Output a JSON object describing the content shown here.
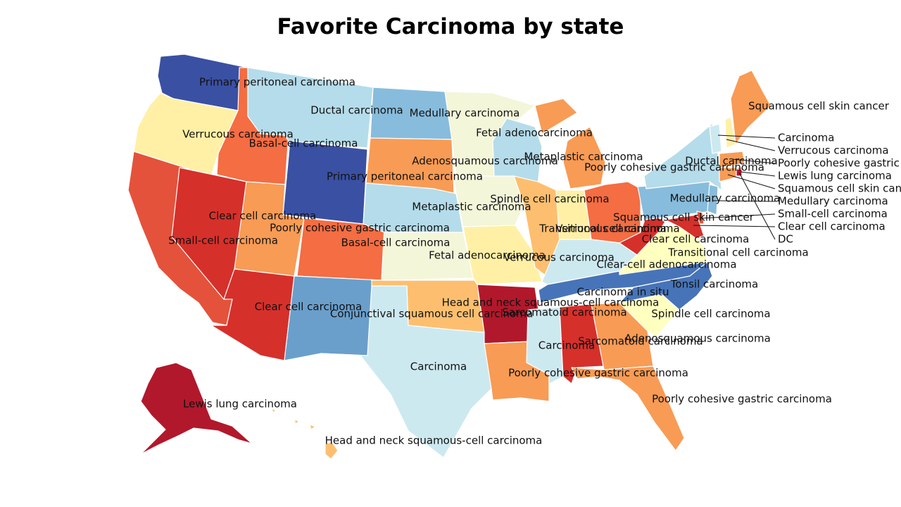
{
  "title": "Favorite Carcinoma by state",
  "palette": {
    "c1": "#a50026",
    "c2": "#d73027",
    "c3": "#f46d43",
    "c4": "#fdae61",
    "c5": "#fee090",
    "c6": "#ffffbf",
    "c7": "#e0f3f8",
    "c8": "#abd9e9",
    "c9": "#74add1",
    "c10": "#4575b4",
    "c11": "#313695",
    "c_dark_red": "#b2182b",
    "c_red": "#d6302b",
    "c_orange_red": "#e4523b",
    "c_orange": "#f89b55",
    "c_light_orange": "#fdbf6f",
    "c_yellow": "#fff0a6",
    "c_pale_yellow": "#f3f6d8",
    "c_pale_blue": "#cde9f0",
    "c_light_blue": "#b5dcea",
    "c_mid_blue": "#88bcdc",
    "c_steel_blue": "#6a9fcc",
    "c_blue": "#4774b8",
    "c_dark_blue": "#3a50a3"
  },
  "states": [
    {
      "code": "WA",
      "label": "Primary peritoneal carcinoma",
      "color": "c_dark_blue"
    },
    {
      "code": "OR",
      "label": "Verrucous carcinoma",
      "color": "c_yellow"
    },
    {
      "code": "CA",
      "label": "Small-cell carcinoma",
      "color": "c_orange_red"
    },
    {
      "code": "NV",
      "label": "Clear cell carcinoma",
      "color": "c_red"
    },
    {
      "code": "ID",
      "label": "Basal-cell carcinoma",
      "color": "c3"
    },
    {
      "code": "MT",
      "label": "Ductal carcinoma",
      "color": "c_light_blue"
    },
    {
      "code": "WY",
      "label": "Primary peritoneal carcinoma",
      "color": "c_dark_blue"
    },
    {
      "code": "UT",
      "label": "Poorly cohesive gastric carcinoma",
      "color": "c_orange"
    },
    {
      "code": "CO",
      "label": "Basal-cell carcinoma",
      "color": "c3"
    },
    {
      "code": "AZ",
      "label": "Clear cell carcinoma",
      "color": "c_red"
    },
    {
      "code": "NM",
      "label": "Conjunctival squamous cell carcinoma",
      "color": "c_steel_blue"
    },
    {
      "code": "ND",
      "label": "Medullary carcinoma",
      "color": "c_mid_blue"
    },
    {
      "code": "SD",
      "label": "Adenosquamous carcinoma",
      "color": "c_orange"
    },
    {
      "code": "NE",
      "label": "Metaplastic carcinoma",
      "color": "c_light_blue"
    },
    {
      "code": "KS",
      "label": "Fetal adenocarcinoma",
      "color": "c_pale_yellow"
    },
    {
      "code": "OK",
      "label": "Head and neck squamous-cell carcinoma",
      "color": "c_light_orange"
    },
    {
      "code": "TX",
      "label": "Carcinoma",
      "color": "c_pale_blue"
    },
    {
      "code": "MN",
      "label": "Fetal adenocarcinoma",
      "color": "c_pale_yellow"
    },
    {
      "code": "IA",
      "label": "Spindle cell carcinoma",
      "color": "c_pale_yellow"
    },
    {
      "code": "MO",
      "label": "Verrucous carcinoma",
      "color": "c_yellow"
    },
    {
      "code": "AR",
      "label": "Sarcomatoid carcinoma",
      "color": "c_dark_red"
    },
    {
      "code": "LA",
      "label": "Poorly cohesive gastric carcinoma",
      "color": "c_orange"
    },
    {
      "code": "WI",
      "label": "Metaplastic carcinoma",
      "color": "c_light_blue"
    },
    {
      "code": "IL",
      "label": "Transitional cell carcinoma",
      "color": "c_light_orange"
    },
    {
      "code": "MI",
      "label": "Poorly cohesive gastric carcinoma",
      "color": "c_orange"
    },
    {
      "code": "IN",
      "label": "Verrucous carcinoma",
      "color": "c_yellow"
    },
    {
      "code": "OH",
      "label": "Squamous cell skin cancer",
      "color": "c3"
    },
    {
      "code": "KY",
      "label": "Clear-cell adenocarcinoma",
      "color": "c_pale_blue"
    },
    {
      "code": "TN",
      "label": "Carcinoma in situ",
      "color": "c_blue"
    },
    {
      "code": "MS",
      "label": "Carcinoma",
      "color": "c_pale_blue"
    },
    {
      "code": "AL",
      "label": "Sarcomatoid carcinoma",
      "color": "c_red"
    },
    {
      "code": "GA",
      "label": "Adenosquamous carcinoma",
      "color": "c_orange"
    },
    {
      "code": "FL",
      "label": "Poorly cohesive gastric carcinoma",
      "color": "c_orange"
    },
    {
      "code": "SC",
      "label": "Spindle cell carcinoma",
      "color": "c6"
    },
    {
      "code": "NC",
      "label": "Tonsil carcinoma",
      "color": "c_blue"
    },
    {
      "code": "VA",
      "label": "Transitional cell carcinoma",
      "color": "c6"
    },
    {
      "code": "WV",
      "label": "Clear cell carcinoma",
      "color": "c_red"
    },
    {
      "code": "PA",
      "label": "Medullary carcinoma",
      "color": "c_mid_blue"
    },
    {
      "code": "NY",
      "label": "Ductal carcinoma",
      "color": "c_light_blue"
    },
    {
      "code": "ME",
      "label": "Squamous cell skin cancer",
      "color": "c_orange"
    },
    {
      "code": "AK",
      "label": "Lewis lung carcinoma",
      "color": "c_dark_red"
    },
    {
      "code": "HI",
      "label": "Head and neck squamous-cell carcinoma",
      "color": "c_light_orange"
    }
  ],
  "callouts": [
    {
      "code": "VT",
      "label": "Carcinoma",
      "color": "c_pale_blue"
    },
    {
      "code": "NH",
      "label": "Verrucous carcinoma",
      "color": "c_yellow"
    },
    {
      "code": "MA",
      "label": "Poorly cohesive gastric carcinoma",
      "color": "c_orange"
    },
    {
      "code": "RI",
      "label": "Lewis lung carcinoma",
      "color": "c_dark_red"
    },
    {
      "code": "CT",
      "label": "Squamous cell skin cancer",
      "color": "c_orange"
    },
    {
      "code": "NJ",
      "label": "Medullary carcinoma",
      "color": "c_mid_blue"
    },
    {
      "code": "DE",
      "label": "Small-cell carcinoma",
      "color": "c_orange_red"
    },
    {
      "code": "MD",
      "label": "Clear cell carcinoma",
      "color": "c_red"
    },
    {
      "code": "DC",
      "label": "DC",
      "color": "c_dark_red"
    }
  ]
}
